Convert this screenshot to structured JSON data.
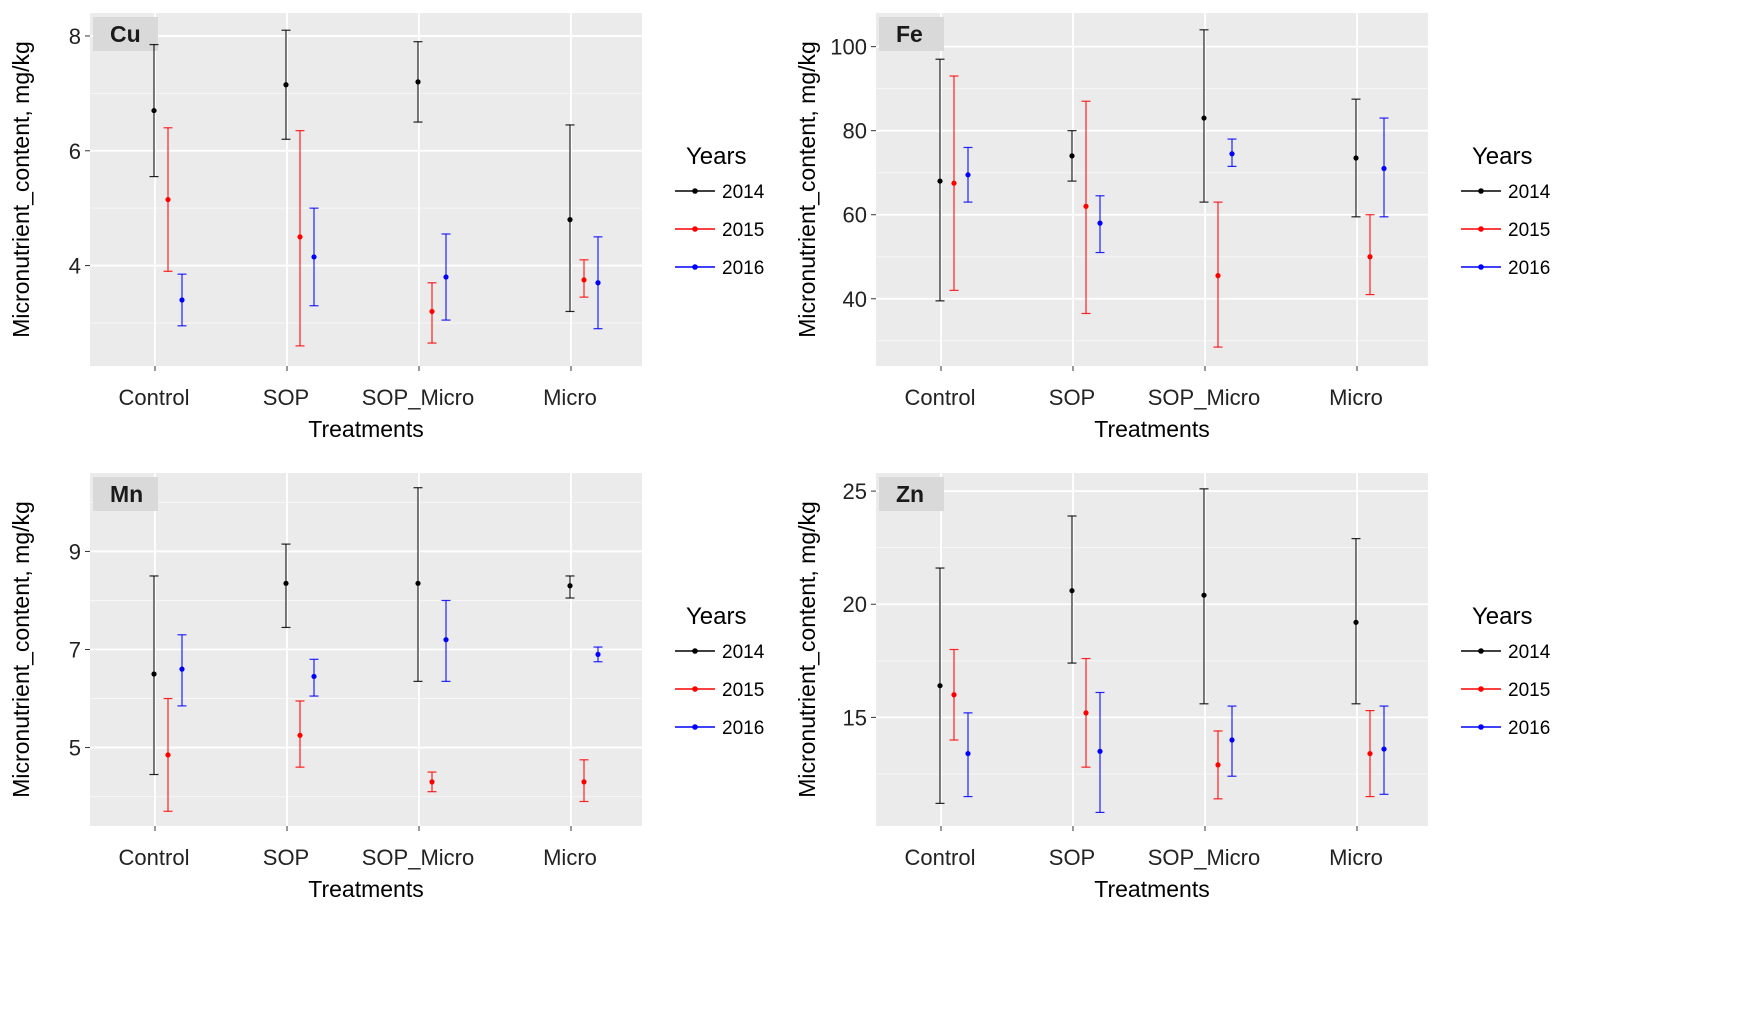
{
  "figure": {
    "legend_title": "Years"
  },
  "chart_data": [
    {
      "type": "errorbar",
      "panel_label": "Cu",
      "xlabel": "Treatments",
      "ylabel": "Micronutrient_content, mg/kg",
      "categories": [
        "Control",
        "SOP",
        "SOP_Micro",
        "Micro"
      ],
      "ylim": [
        2.25,
        8.4
      ],
      "yticks": [
        4,
        6,
        8
      ],
      "series": [
        {
          "name": "2014",
          "color": "#000000",
          "mean": [
            6.7,
            7.15,
            7.2,
            4.8
          ],
          "lower": [
            5.55,
            6.2,
            6.5,
            3.2
          ],
          "upper": [
            7.85,
            8.1,
            7.9,
            6.45
          ]
        },
        {
          "name": "2015",
          "color": "#ff0000",
          "mean": [
            5.15,
            4.5,
            3.2,
            3.75
          ],
          "lower": [
            3.9,
            2.6,
            2.65,
            3.45
          ],
          "upper": [
            6.4,
            6.35,
            3.7,
            4.1
          ]
        },
        {
          "name": "2016",
          "color": "#0000ff",
          "mean": [
            3.4,
            4.15,
            3.8,
            3.7
          ],
          "lower": [
            2.95,
            3.3,
            3.05,
            2.9
          ],
          "upper": [
            3.85,
            5.0,
            4.55,
            4.5
          ]
        }
      ]
    },
    {
      "type": "errorbar",
      "panel_label": "Fe",
      "xlabel": "Treatments",
      "ylabel": "Micronutrient_content, mg/kg",
      "categories": [
        "Control",
        "SOP",
        "SOP_Micro",
        "Micro"
      ],
      "ylim": [
        24,
        108
      ],
      "yticks": [
        40,
        60,
        80,
        100
      ],
      "series": [
        {
          "name": "2014",
          "color": "#000000",
          "mean": [
            68,
            74,
            83,
            73.5
          ],
          "lower": [
            39.5,
            68,
            63,
            59.5
          ],
          "upper": [
            97,
            80,
            104,
            87.5
          ]
        },
        {
          "name": "2015",
          "color": "#ff0000",
          "mean": [
            67.5,
            62,
            45.5,
            50
          ],
          "lower": [
            42,
            36.5,
            28.5,
            41
          ],
          "upper": [
            93,
            87,
            63,
            60
          ]
        },
        {
          "name": "2016",
          "color": "#0000ff",
          "mean": [
            69.5,
            58,
            74.5,
            71
          ],
          "lower": [
            63,
            51,
            71.5,
            59.5
          ],
          "upper": [
            76,
            64.5,
            78,
            83
          ]
        }
      ]
    },
    {
      "type": "errorbar",
      "panel_label": "Mn",
      "xlabel": "Treatments",
      "ylabel": "Micronutrient_content, mg/kg",
      "categories": [
        "Control",
        "SOP",
        "SOP_Micro",
        "Micro"
      ],
      "ylim": [
        3.4,
        10.6
      ],
      "yticks": [
        5,
        7,
        9
      ],
      "series": [
        {
          "name": "2014",
          "color": "#000000",
          "mean": [
            6.5,
            8.35,
            8.35,
            8.3
          ],
          "lower": [
            4.45,
            7.45,
            6.35,
            8.05
          ],
          "upper": [
            8.5,
            9.15,
            10.3,
            8.5
          ]
        },
        {
          "name": "2015",
          "color": "#ff0000",
          "mean": [
            4.85,
            5.25,
            4.3,
            4.3
          ],
          "lower": [
            3.7,
            4.6,
            4.1,
            3.9
          ],
          "upper": [
            6.0,
            5.95,
            4.5,
            4.75
          ]
        },
        {
          "name": "2016",
          "color": "#0000ff",
          "mean": [
            6.6,
            6.45,
            7.2,
            6.9
          ],
          "lower": [
            5.85,
            6.05,
            6.35,
            6.75
          ],
          "upper": [
            7.3,
            6.8,
            8.0,
            7.05
          ]
        }
      ]
    },
    {
      "type": "errorbar",
      "panel_label": "Zn",
      "xlabel": "Treatments",
      "ylabel": "Micronutrient_content, mg/kg",
      "categories": [
        "Control",
        "SOP",
        "SOP_Micro",
        "Micro"
      ],
      "ylim": [
        10.2,
        25.8
      ],
      "yticks": [
        15,
        20,
        25
      ],
      "series": [
        {
          "name": "2014",
          "color": "#000000",
          "mean": [
            16.4,
            20.6,
            20.4,
            19.2
          ],
          "lower": [
            11.2,
            17.4,
            15.6,
            15.6
          ],
          "upper": [
            21.6,
            23.9,
            25.1,
            22.9
          ]
        },
        {
          "name": "2015",
          "color": "#ff0000",
          "mean": [
            16.0,
            15.2,
            12.9,
            13.4
          ],
          "lower": [
            14.0,
            12.8,
            11.4,
            11.5
          ],
          "upper": [
            18.0,
            17.6,
            14.4,
            15.3
          ]
        },
        {
          "name": "2016",
          "color": "#0000ff",
          "mean": [
            13.4,
            13.5,
            14.0,
            13.6
          ],
          "lower": [
            11.5,
            10.8,
            12.4,
            11.6
          ],
          "upper": [
            15.2,
            16.1,
            15.5,
            15.5
          ]
        }
      ]
    }
  ]
}
